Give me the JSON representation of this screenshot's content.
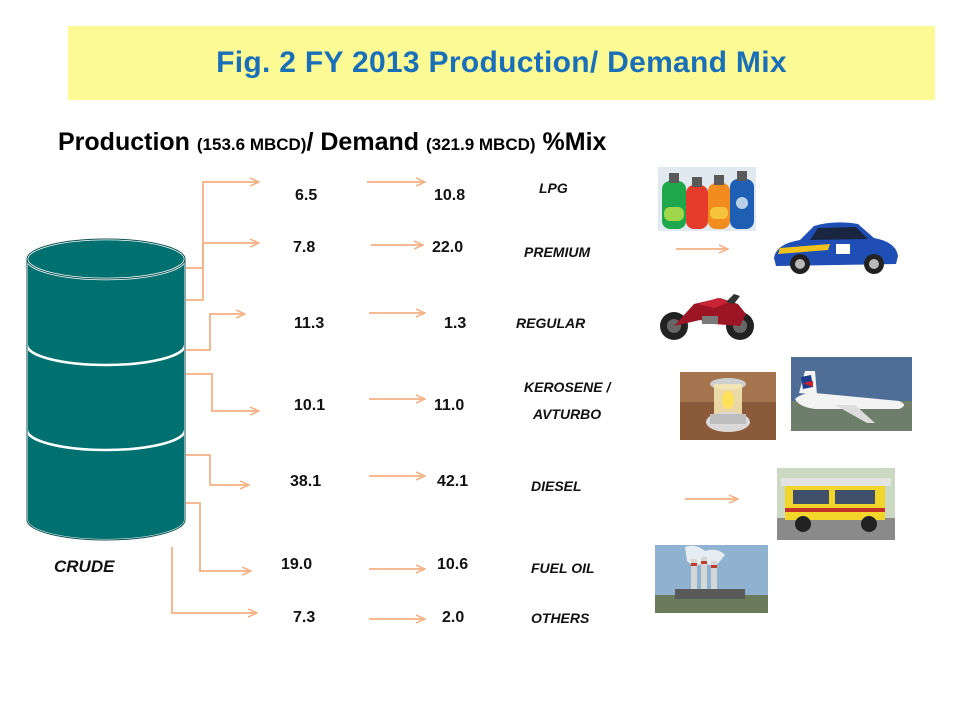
{
  "title": "Fig. 2  FY 2013 Production/ Demand Mix",
  "subtitle": {
    "production": "Production ",
    "production_value": "(153.6 MBCD)",
    "separator": "/ Demand ",
    "demand_value": "(321.9 MBCD)",
    "suffix": " %Mix"
  },
  "source_label": "CRUDE",
  "products": [
    {
      "name": "LPG",
      "production": "6.5",
      "demand": "10.8",
      "icon": "lpg-cylinders-icon"
    },
    {
      "name": "PREMIUM",
      "production": "7.8",
      "demand": "22.0",
      "icon": "rally-car-icon"
    },
    {
      "name": "REGULAR",
      "production": "11.3",
      "demand": "1.3",
      "icon": "motorcycle-icon"
    },
    {
      "name": "KEROSENE /",
      "name2": "AVTURBO",
      "production": "10.1",
      "demand": "11.0",
      "icon": "lantern-and-airplane-icon"
    },
    {
      "name": "DIESEL",
      "production": "38.1",
      "demand": "42.1",
      "icon": "jeepney-icon"
    },
    {
      "name": "FUEL OIL",
      "production": "19.0",
      "demand": "10.6",
      "icon": "power-plant-icon"
    },
    {
      "name": "OTHERS",
      "production": "7.3",
      "demand": "2.0",
      "icon": ""
    }
  ],
  "colors": {
    "title": "#1a6fb9",
    "title_band": "#fbfa94",
    "arrow": "#f4b183",
    "barrel": "#007070"
  }
}
